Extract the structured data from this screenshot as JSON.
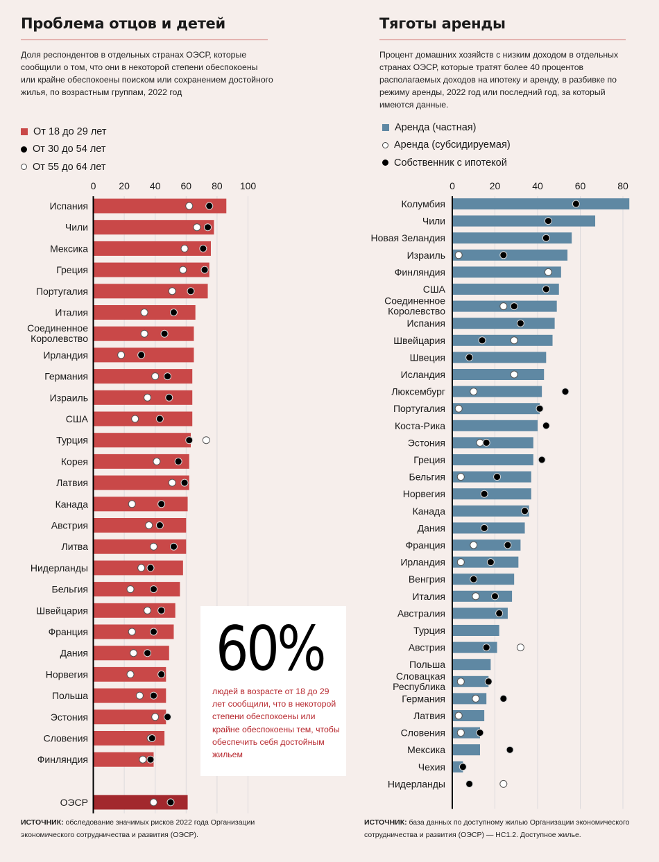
{
  "left": {
    "title": "Проблема отцов и детей",
    "subtitle": "Доля респондентов в отдельных странах ОЭСР, которые сообщили о том, что они в некоторой степени обеспокоены или крайне обеспокоены поиском или сохранением достойного жилья, по возрастным группам, 2022 год",
    "legend": [
      {
        "label": "От 18 до 29 лет",
        "marker": "red-square"
      },
      {
        "label": "От 30 до 54 лет",
        "marker": "black-dot"
      },
      {
        "label": "От 55 до 64 лет",
        "marker": "white-dot"
      }
    ],
    "source_label": "ИСТОЧНИК:",
    "source_text": " обследование значимых рисков 2022 года Организации экономического сотрудничества и развития (ОЭСР).",
    "callout": {
      "value": "60%",
      "text": "людей в возрасте от 18 до 29 лет сообщили, что в некоторой степени обеспокоены или крайне обеспокоены тем, чтобы обеспечить себя достойным жильем"
    }
  },
  "right": {
    "title": "Тяготы аренды",
    "subtitle": "Процент домашних хозяйств с низким доходом в отдельных странах ОЭСР, которые тратят более 40 процентов располагаемых доходов на ипотеку и аренду, в разбивке по режиму аренды, 2022 год или последний год, за который имеются данные.",
    "legend": [
      {
        "label": "Аренда (частная)",
        "marker": "blue-square"
      },
      {
        "label": "Аренда (субсидируемая)",
        "marker": "white-dot"
      },
      {
        "label": "Собственник с ипотекой",
        "marker": "black-dot"
      }
    ],
    "source_label": "ИСТОЧНИК:",
    "source_text": " база данных по доступному жилью Организации экономического сотрудничества и развития (ОЭСР) — HC1.2. Доступное жилье."
  },
  "colors": {
    "background": "#f6eeeb",
    "left_bar": "#c94848",
    "left_bar_total": "#a2282d",
    "right_bar": "#5f88a3",
    "rule": "#cf6d6a",
    "callout_text": "#b7282e",
    "grid": "#dcd9dc"
  },
  "chart_data": [
    {
      "type": "bar",
      "orientation": "horizontal",
      "title": "Проблема отцов и детей",
      "xlabel": "",
      "ylabel": "",
      "xlim": [
        0,
        100
      ],
      "xticks": [
        0,
        20,
        40,
        60,
        80,
        100
      ],
      "grid": true,
      "legend_position": "top-left",
      "categories": [
        "Испания",
        "Чили",
        "Мексика",
        "Греция",
        "Португалия",
        "Италия",
        "Соединенное\nКоролевство",
        "Ирландия",
        "Германия",
        "Израиль",
        "США",
        "Турция",
        "Корея",
        "Латвия",
        "Канада",
        "Австрия",
        "Литва",
        "Нидерланды",
        "Бельгия",
        "Швейцария",
        "Франция",
        "Дания",
        "Норвегия",
        "Польша",
        "Эстония",
        "Словения",
        "Финляндия",
        "ОЭСР"
      ],
      "highlight_category": "ОЭСР",
      "series": [
        {
          "name": "От 18 до 29 лет",
          "mark": "bar",
          "values": [
            86,
            78,
            76,
            75,
            74,
            66,
            65,
            65,
            64,
            64,
            64,
            63,
            62,
            62,
            61,
            60,
            60,
            58,
            56,
            53,
            52,
            49,
            47,
            47,
            47,
            46,
            39,
            61
          ]
        },
        {
          "name": "От 30 до 54 лет",
          "mark": "black-dot",
          "values": [
            75,
            74,
            71,
            72,
            63,
            52,
            46,
            31,
            48,
            49,
            43,
            62,
            55,
            59,
            44,
            43,
            52,
            37,
            39,
            44,
            39,
            35,
            44,
            39,
            48,
            38,
            37,
            50
          ]
        },
        {
          "name": "От 55 до 64 лет",
          "mark": "white-dot",
          "values": [
            62,
            67,
            59,
            58,
            51,
            33,
            33,
            18,
            40,
            35,
            27,
            73,
            41,
            51,
            25,
            36,
            39,
            31,
            24,
            35,
            25,
            26,
            24,
            30,
            40,
            37,
            32,
            39
          ]
        }
      ]
    },
    {
      "type": "bar",
      "orientation": "horizontal",
      "title": "Тяготы аренды",
      "xlabel": "",
      "ylabel": "",
      "xlim": [
        0,
        80
      ],
      "xticks": [
        0,
        20,
        40,
        60,
        80
      ],
      "grid": true,
      "legend_position": "top-left",
      "categories": [
        "Колумбия",
        "Чили",
        "Новая Зеландия",
        "Израиль",
        "Финляндия",
        "США",
        "Соединенное\nКоролевство",
        "Испания",
        "Швейцария",
        "Швеция",
        "Исландия",
        "Люксембург",
        "Португалия",
        "Коста-Рика",
        "Эстония",
        "Греция",
        "Бельгия",
        "Норвегия",
        "Канада",
        "Дания",
        "Франция",
        "Ирландия",
        "Венгрия",
        "Италия",
        "Австралия",
        "Турция",
        "Австрия",
        "Польша",
        "Словацкая\nРеспублика",
        "Германия",
        "Латвия",
        "Словения",
        "Мексика",
        "Чехия",
        "Нидерланды"
      ],
      "series": [
        {
          "name": "Аренда (частная)",
          "mark": "bar",
          "values": [
            83,
            67,
            56,
            54,
            51,
            50,
            49,
            48,
            47,
            44,
            43,
            42,
            41,
            40,
            38,
            38,
            37,
            37,
            36,
            34,
            32,
            31,
            29,
            28,
            26,
            22,
            21,
            18,
            17,
            16,
            15,
            13,
            13,
            5,
            null
          ]
        },
        {
          "name": "Аренда (субсидируемая)",
          "mark": "white-dot",
          "values": [
            null,
            null,
            null,
            3,
            45,
            null,
            24,
            32,
            29,
            null,
            29,
            10,
            3,
            null,
            13,
            null,
            4,
            null,
            null,
            null,
            10,
            4,
            10,
            11,
            null,
            null,
            32,
            null,
            4,
            11,
            3,
            4,
            null,
            null,
            24
          ]
        },
        {
          "name": "Собственник с ипотекой",
          "mark": "black-dot",
          "values": [
            58,
            45,
            44,
            24,
            null,
            44,
            29,
            32,
            14,
            8,
            null,
            53,
            41,
            44,
            16,
            42,
            21,
            15,
            34,
            15,
            26,
            18,
            10,
            20,
            22,
            null,
            16,
            null,
            17,
            24,
            null,
            13,
            27,
            5,
            8
          ]
        }
      ]
    }
  ]
}
